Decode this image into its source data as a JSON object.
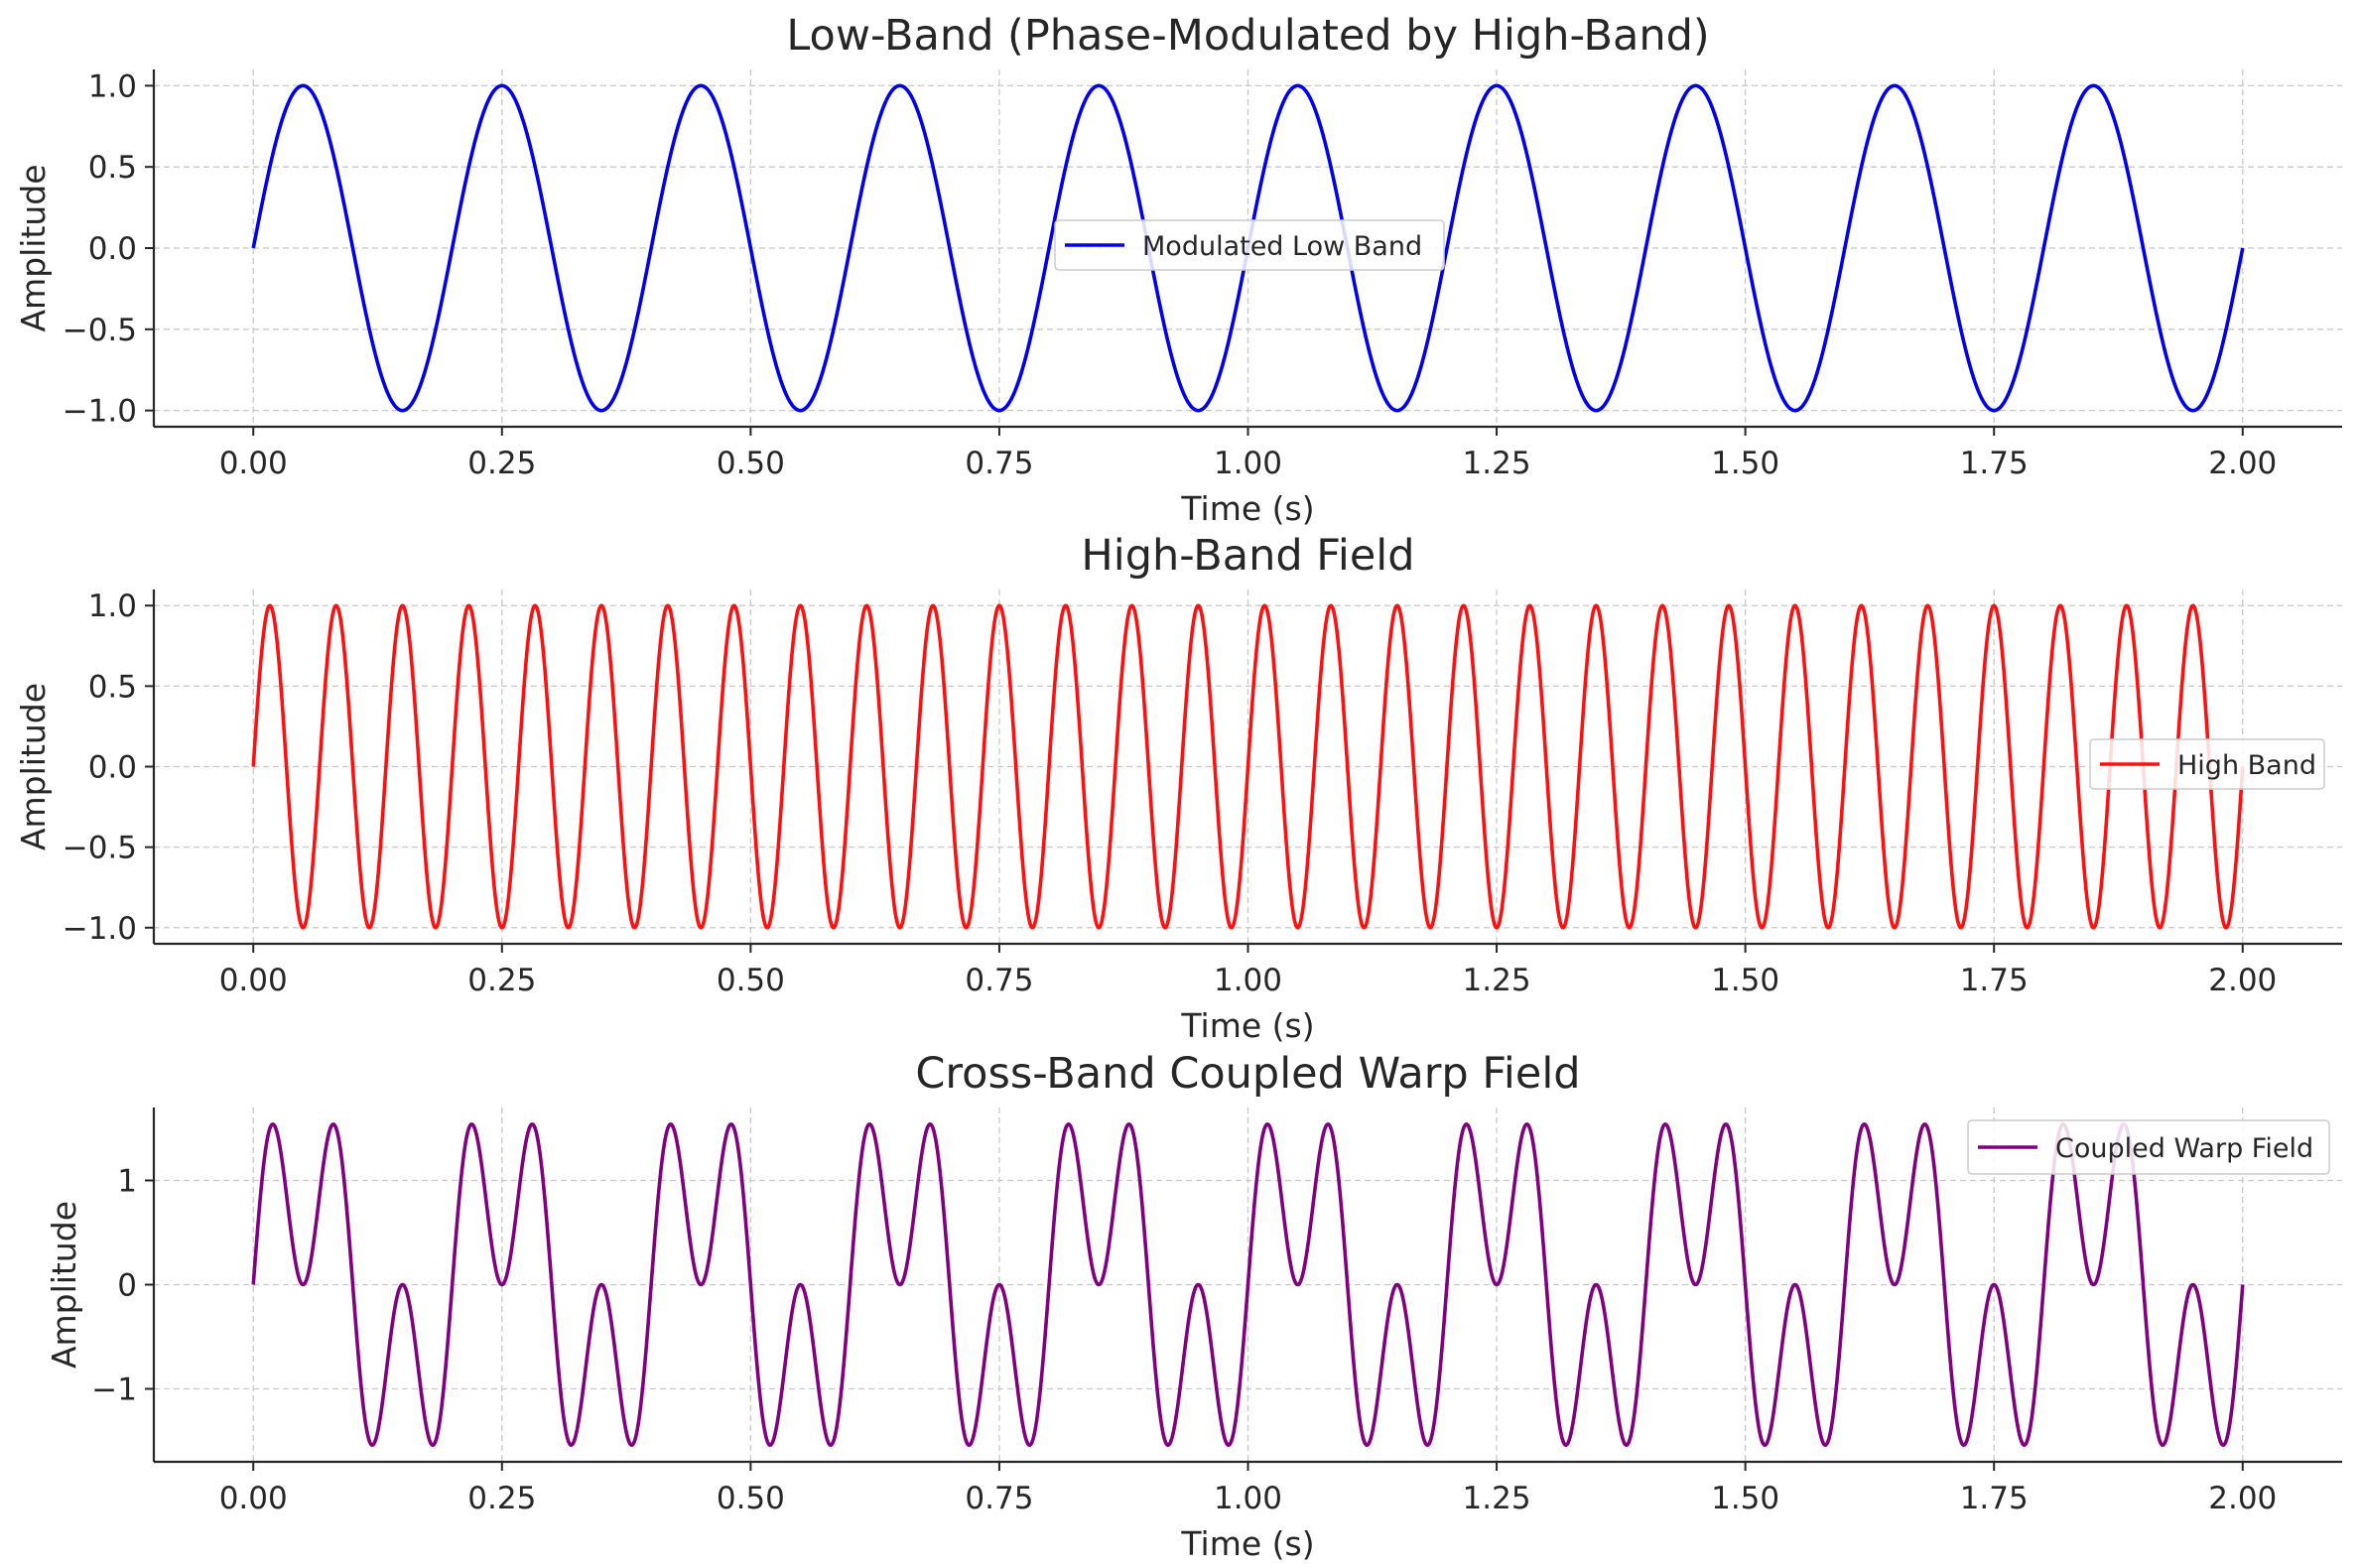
{
  "chart_data": [
    {
      "type": "line",
      "title": "Low-Band (Phase-Modulated by High-Band)",
      "xlabel": "Time (s)",
      "ylabel": "Amplitude",
      "xlim": [
        -0.1,
        2.1
      ],
      "ylim": [
        -1.1,
        1.1
      ],
      "xticks": [
        0,
        0.25,
        0.5,
        0.75,
        1.0,
        1.25,
        1.5,
        1.75,
        2.0
      ],
      "xtick_labels": [
        "0.00",
        "0.25",
        "0.50",
        "0.75",
        "1.00",
        "1.25",
        "1.50",
        "1.75",
        "2.00"
      ],
      "yticks": [
        1.0,
        0.5,
        0,
        -0.5,
        -1.0
      ],
      "ytick_labels": [
        "1.0",
        "0.5",
        "0.0",
        "−0.5",
        "−1.0"
      ],
      "grid": true,
      "legend_position": "center",
      "series": [
        {
          "name": "Modulated Low Band",
          "color": "#0000ee",
          "x_range": [
            0,
            2
          ],
          "formula": "sin(2*pi*5*t)",
          "frequency_hz": 5,
          "amplitude": 1
        }
      ]
    },
    {
      "type": "line",
      "title": "High-Band Field",
      "xlabel": "Time (s)",
      "ylabel": "Amplitude",
      "xlim": [
        -0.1,
        2.1
      ],
      "ylim": [
        -1.1,
        1.1
      ],
      "xticks": [
        0,
        0.25,
        0.5,
        0.75,
        1.0,
        1.25,
        1.5,
        1.75,
        2.0
      ],
      "xtick_labels": [
        "0.00",
        "0.25",
        "0.50",
        "0.75",
        "1.00",
        "1.25",
        "1.50",
        "1.75",
        "2.00"
      ],
      "yticks": [
        1.0,
        0.5,
        0,
        -0.5,
        -1.0
      ],
      "ytick_labels": [
        "1.0",
        "0.5",
        "0.0",
        "−0.5",
        "−1.0"
      ],
      "grid": true,
      "legend_position": "center-right",
      "series": [
        {
          "name": "High Band",
          "color": "#ff1010",
          "x_range": [
            0,
            2
          ],
          "formula": "sin(2*pi*15*t)",
          "frequency_hz": 15,
          "amplitude": 1
        }
      ]
    },
    {
      "type": "line",
      "title": "Cross-Band Coupled Warp Field",
      "xlabel": "Time (s)",
      "ylabel": "Amplitude",
      "xlim": [
        -0.1,
        2.1
      ],
      "ylim": [
        -1.7,
        1.7
      ],
      "xticks": [
        0,
        0.25,
        0.5,
        0.75,
        1.0,
        1.25,
        1.5,
        1.75,
        2.0
      ],
      "xtick_labels": [
        "0.00",
        "0.25",
        "0.50",
        "0.75",
        "1.00",
        "1.25",
        "1.50",
        "1.75",
        "2.00"
      ],
      "yticks": [
        1,
        0,
        -1
      ],
      "ytick_labels": [
        "1",
        "0",
        "−1"
      ],
      "grid": true,
      "legend_position": "upper right",
      "series": [
        {
          "name": "Coupled Warp Field",
          "color": "#800080",
          "x_range": [
            0,
            2
          ],
          "formula": "sin(2*pi*5*t) + sin(2*pi*15*t)",
          "components_hz": [
            5,
            15
          ]
        }
      ]
    }
  ]
}
